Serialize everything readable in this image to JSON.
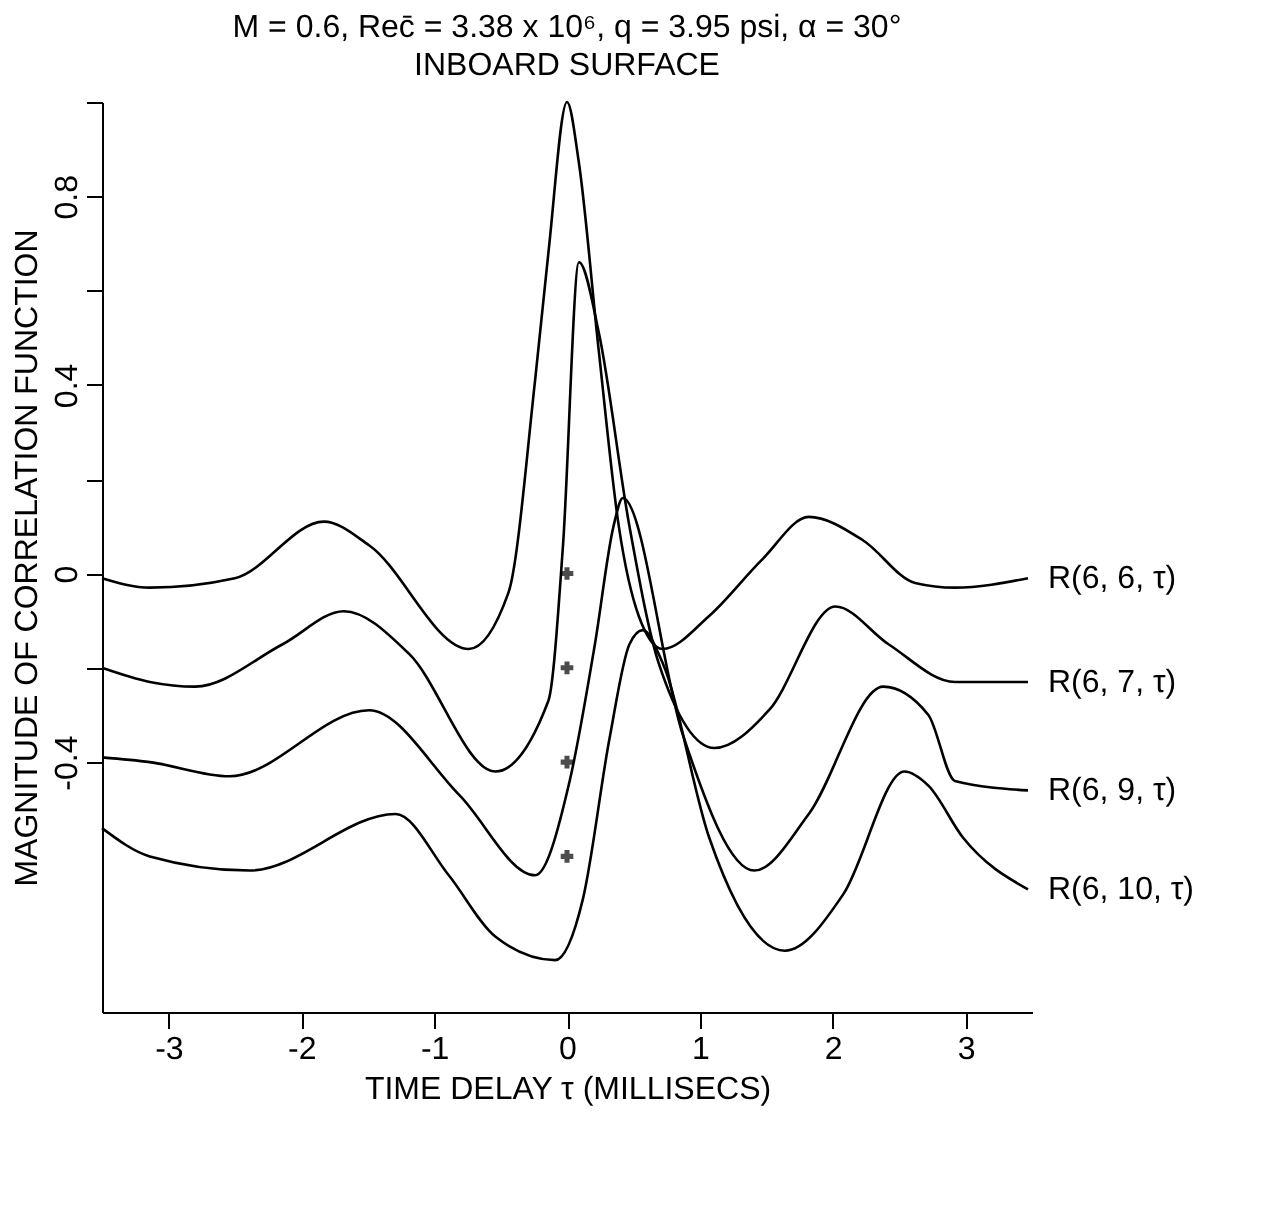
{
  "chart_data": {
    "type": "line",
    "title": "M = 0.6, Rec̄ = 3.38 x 10⁶, q = 3.95 psi, α = 30°",
    "subtitle": "INBOARD SURFACE",
    "xlabel": "TIME DELAY τ (MILLISECS)",
    "ylabel": "MAGNITUDE OF CORRELATION FUNCTION",
    "xlim": [
      -3.5,
      3.5
    ],
    "xticks": [
      -3,
      -2,
      -1,
      0,
      1,
      2,
      3
    ],
    "ylim": [
      -0.93,
      1.0
    ],
    "yticks": [
      {
        "value": 1.0,
        "label": null
      },
      0.8,
      {
        "value": 0.6,
        "label": null
      },
      0.4,
      {
        "value": 0.2,
        "label": null
      },
      0,
      {
        "value": -0.2,
        "label": null
      },
      -0.4
    ],
    "grid": false,
    "line_style": "solid",
    "marker": "none",
    "series": [
      {
        "name": "R(6, 6, τ)",
        "color": "#000000",
        "x": [
          -3.5,
          -3.14,
          -2.5,
          -1.83,
          -1.49,
          -0.74,
          -0.44,
          -0.24,
          -0.14,
          0,
          0.09,
          0.24,
          0.39,
          0.54,
          0.72,
          1.07,
          1.47,
          1.82,
          2.23,
          2.62,
          2.92,
          3.47
        ],
        "values": [
          -0.01,
          -0.03,
          -0.01,
          0.11,
          0.06,
          -0.16,
          -0.04,
          0.41,
          0.68,
          1.0,
          0.87,
          0.47,
          0.1,
          -0.09,
          -0.16,
          -0.09,
          0.03,
          0.12,
          0.07,
          -0.02,
          -0.03,
          -0.01
        ]
      },
      {
        "name": "R(6, 7, τ)",
        "color": "#000000",
        "x": [
          -3.5,
          -3.14,
          -2.8,
          -2.14,
          -1.68,
          -1.19,
          -0.54,
          -0.14,
          -0.03,
          0.09,
          0.24,
          0.47,
          0.69,
          1.11,
          1.52,
          2.02,
          2.42,
          2.92,
          3.47
        ],
        "values": [
          -0.2,
          -0.23,
          -0.24,
          -0.15,
          -0.08,
          -0.17,
          -0.42,
          -0.27,
          0.06,
          0.66,
          0.51,
          0.1,
          -0.19,
          -0.37,
          -0.29,
          -0.07,
          -0.15,
          -0.23,
          -0.23
        ]
      },
      {
        "name": "R(6, 9, τ)",
        "color": "#000000",
        "x": [
          -3.5,
          -3.14,
          -2.54,
          -1.49,
          -0.81,
          -0.24,
          0.02,
          0.21,
          0.35,
          0.42,
          0.87,
          1.41,
          1.82,
          2.38,
          2.72,
          2.92,
          3.47
        ],
        "values": [
          -0.39,
          -0.4,
          -0.43,
          -0.29,
          -0.47,
          -0.64,
          -0.44,
          -0.15,
          0.1,
          0.16,
          -0.34,
          -0.63,
          -0.51,
          -0.24,
          -0.3,
          -0.44,
          -0.46
        ]
      },
      {
        "name": "R(6, 10, τ)",
        "color": "#000000",
        "x": [
          -3.5,
          -3.14,
          -2.39,
          -1.29,
          -0.89,
          -0.54,
          -0.09,
          0.12,
          0.32,
          0.47,
          0.57,
          0.72,
          1.07,
          1.64,
          2.08,
          2.54,
          2.72,
          2.98,
          3.47
        ],
        "values": [
          -0.54,
          -0.6,
          -0.63,
          -0.51,
          -0.64,
          -0.77,
          -0.82,
          -0.69,
          -0.35,
          -0.15,
          -0.12,
          -0.19,
          -0.56,
          -0.8,
          -0.68,
          -0.42,
          -0.45,
          -0.56,
          -0.67
        ]
      },
      {
        "type": "scatter",
        "marker": "cross",
        "color": "#000000",
        "x": [
          0,
          0,
          0,
          0
        ],
        "values": [
          0,
          -0.2,
          -0.4,
          -0.6
        ]
      }
    ]
  }
}
